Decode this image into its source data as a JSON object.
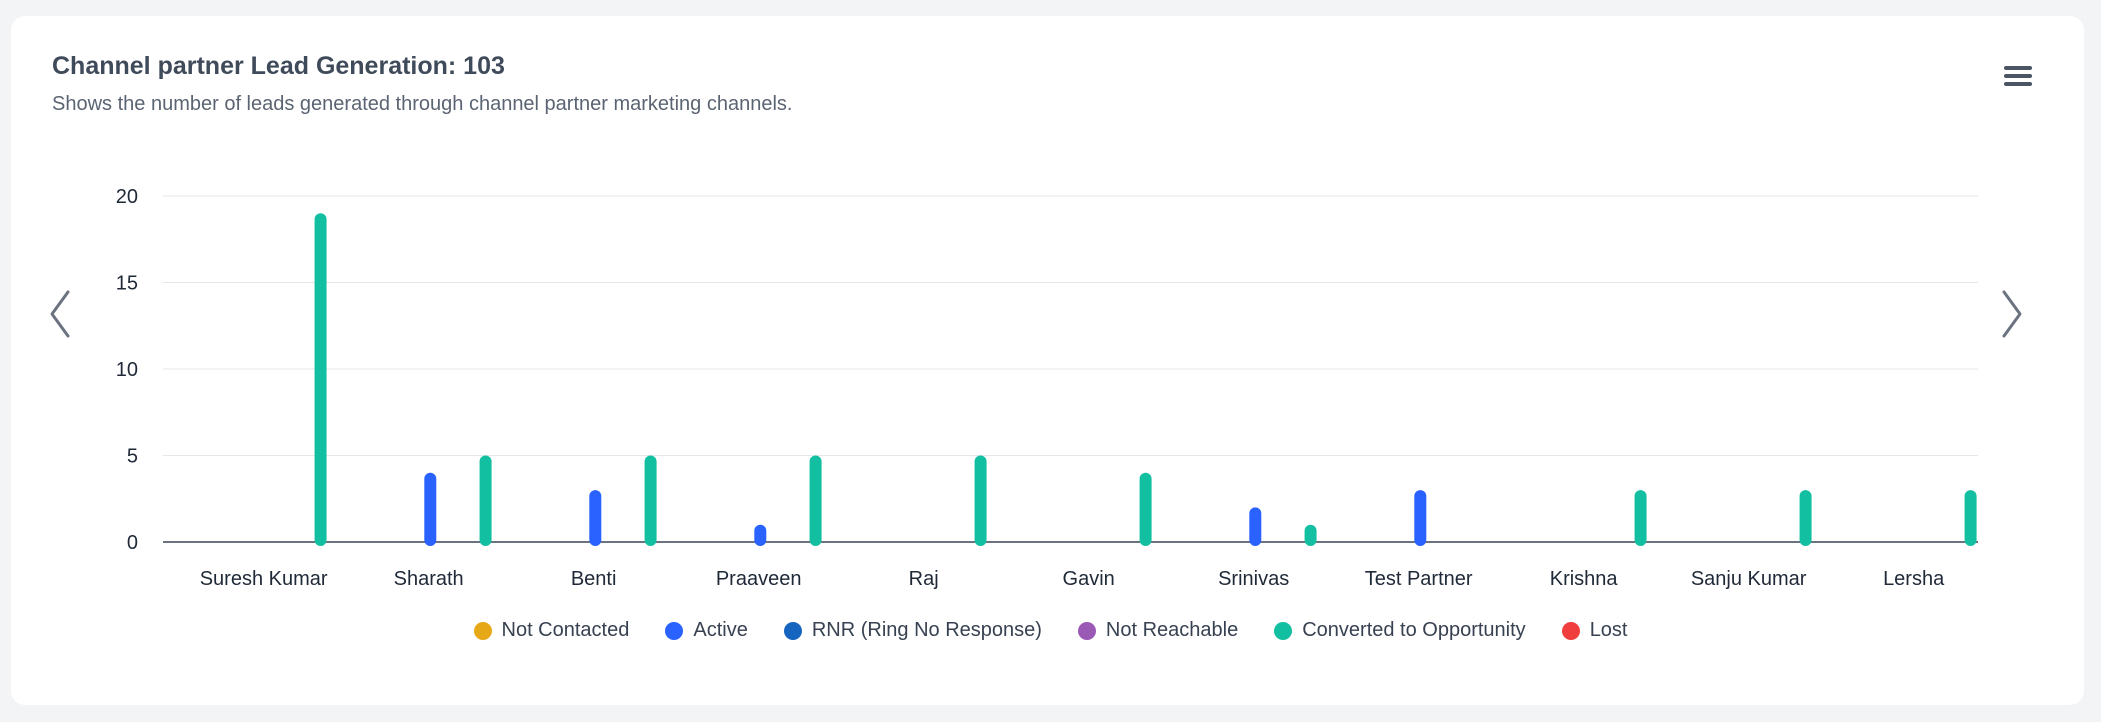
{
  "header": {
    "title": "Channel partner Lead Generation: 103",
    "subtitle": "Shows the number of leads generated through channel partner marketing channels."
  },
  "icons": {
    "menu": "hamburger-menu-icon",
    "prev": "chevron-left-icon",
    "next": "chevron-right-icon"
  },
  "colors": {
    "axis": "#6b7280",
    "grid": "#e5e7eb",
    "tick_text": "#1f2937"
  },
  "chart_data": {
    "type": "bar",
    "title": "Channel partner Lead Generation: 103",
    "subtitle": "Shows the number of leads generated through channel partner marketing channels.",
    "categories": [
      "Suresh Kumar",
      "Sharath",
      "Benti",
      "Praaveen",
      "Raj",
      "Gavin",
      "Srinivas",
      "Test Partner",
      "Krishna",
      "Sanju Kumar",
      "Lersha"
    ],
    "ylim": [
      0,
      20
    ],
    "yticks": [
      0,
      5,
      10,
      15,
      20
    ],
    "grid": true,
    "legend_position": "bottom",
    "series": [
      {
        "name": "Not Contacted",
        "color": "#e6a817",
        "values": [
          0,
          0,
          0,
          0,
          0,
          0,
          0,
          0,
          0,
          0,
          0
        ]
      },
      {
        "name": "Active",
        "color": "#2962ff",
        "values": [
          0,
          4,
          3,
          1,
          0,
          0,
          2,
          3,
          0,
          0,
          0
        ]
      },
      {
        "name": "RNR (Ring No Response)",
        "color": "#1565c0",
        "values": [
          0,
          0,
          0,
          0,
          0,
          0,
          0,
          0,
          0,
          0,
          0
        ]
      },
      {
        "name": "Not Reachable",
        "color": "#9b59b6",
        "values": [
          0,
          0,
          0,
          0,
          0,
          0,
          0,
          0,
          0,
          0,
          0
        ]
      },
      {
        "name": "Converted to Opportunity",
        "color": "#12bfa0",
        "values": [
          19,
          5,
          5,
          5,
          5,
          4,
          1,
          0,
          3,
          3,
          3
        ]
      },
      {
        "name": "Lost",
        "color": "#f03e3e",
        "values": [
          0,
          0,
          0,
          0,
          0,
          0,
          0,
          0,
          0,
          0,
          0
        ]
      }
    ]
  }
}
